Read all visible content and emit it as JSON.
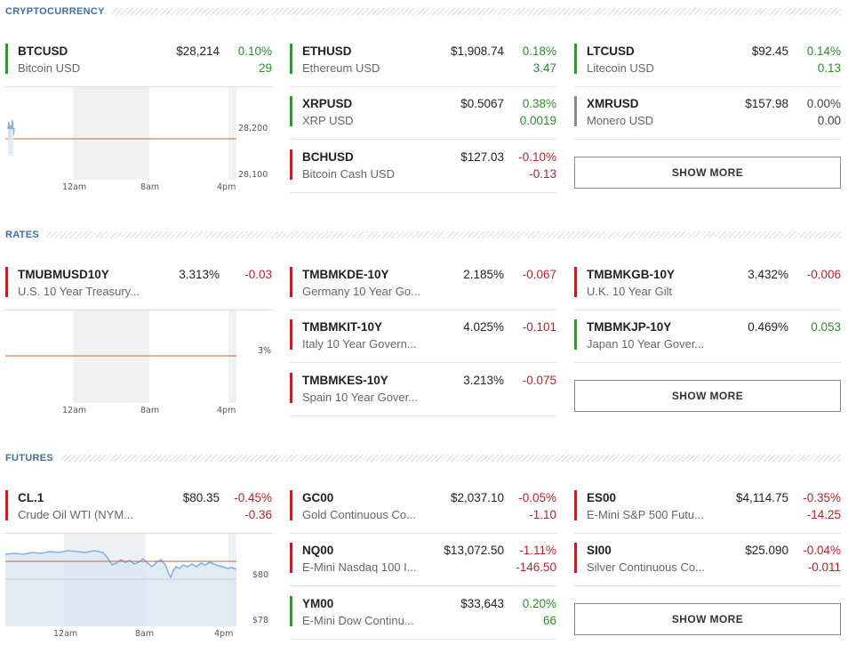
{
  "sections": {
    "crypto": {
      "title": "CRYPTOCURRENCY",
      "show_more": "SHOW MORE",
      "chart": {
        "y_top_label": "28,200",
        "y_bottom_label": "28,100",
        "x_labels": [
          "12am",
          "8am",
          "4pm"
        ]
      },
      "quotes": [
        {
          "symbol": "BTCUSD",
          "name": "Bitcoin USD",
          "price": "$28,214",
          "pct": "0.10%",
          "change": "29",
          "dir": "up"
        },
        {
          "symbol": "ETHUSD",
          "name": "Ethereum USD",
          "price": "$1,908.74",
          "pct": "0.18%",
          "change": "3.47",
          "dir": "up"
        },
        {
          "symbol": "LTCUSD",
          "name": "Litecoin USD",
          "price": "$92.45",
          "pct": "0.14%",
          "change": "0.13",
          "dir": "up"
        },
        {
          "symbol": "XRPUSD",
          "name": "XRP USD",
          "price": "$0.5067",
          "pct": "0.38%",
          "change": "0.0019",
          "dir": "up"
        },
        {
          "symbol": "XMRUSD",
          "name": "Monero USD",
          "price": "$157.98",
          "pct": "0.00%",
          "change": "0.00",
          "dir": "flat"
        },
        {
          "symbol": "BCHUSD",
          "name": "Bitcoin Cash USD",
          "price": "$127.03",
          "pct": "-0.10%",
          "change": "-0.13",
          "dir": "down"
        }
      ]
    },
    "rates": {
      "title": "RATES",
      "show_more": "SHOW MORE",
      "chart": {
        "y_label": "3%",
        "x_labels": [
          "12am",
          "8am",
          "4pm"
        ]
      },
      "quotes": [
        {
          "symbol": "TMUBMUSD10Y",
          "name": "U.S. 10 Year Treasury...",
          "price": "3.313%",
          "pct": "-0.03",
          "dir": "down"
        },
        {
          "symbol": "TMBMKDE-10Y",
          "name": "Germany 10 Year Go...",
          "price": "2.185%",
          "pct": "-0.067",
          "dir": "down"
        },
        {
          "symbol": "TMBMKGB-10Y",
          "name": "U.K. 10 Year Gilt",
          "price": "3.432%",
          "pct": "-0.006",
          "dir": "down"
        },
        {
          "symbol": "TMBMKIT-10Y",
          "name": "Italy 10 Year Govern...",
          "price": "4.025%",
          "pct": "-0.101",
          "dir": "down"
        },
        {
          "symbol": "TMBMKJP-10Y",
          "name": "Japan 10 Year Gover...",
          "price": "0.469%",
          "pct": "0.053",
          "dir": "up"
        },
        {
          "symbol": "TMBMKES-10Y",
          "name": "Spain 10 Year Gover...",
          "price": "3.213%",
          "pct": "-0.075",
          "dir": "down"
        }
      ]
    },
    "futures": {
      "title": "FUTURES",
      "show_more": "SHOW MORE",
      "chart": {
        "y_top_label": "$80",
        "y_bottom_label": "$78",
        "x_labels": [
          "12am",
          "8am",
          "4pm"
        ]
      },
      "quotes": [
        {
          "symbol": "CL.1",
          "name": "Crude Oil WTI (NYM...",
          "price": "$80.35",
          "pct": "-0.45%",
          "change": "-0.36",
          "dir": "down"
        },
        {
          "symbol": "GC00",
          "name": "Gold Continuous Co...",
          "price": "$2,037.10",
          "pct": "-0.05%",
          "change": "-1.10",
          "dir": "down"
        },
        {
          "symbol": "ES00",
          "name": "E-Mini S&P 500 Futu...",
          "price": "$4,114.75",
          "pct": "-0.35%",
          "change": "-14.25",
          "dir": "down"
        },
        {
          "symbol": "NQ00",
          "name": "E-Mini Nasdaq 100 I...",
          "price": "$13,072.50",
          "pct": "-1.11%",
          "change": "-146.50",
          "dir": "down"
        },
        {
          "symbol": "SI00",
          "name": "Silver Continuous Co...",
          "price": "$25.090",
          "pct": "-0.04%",
          "change": "-0.011",
          "dir": "down"
        },
        {
          "symbol": "YM00",
          "name": "E-Mini Dow Continu...",
          "price": "$33,643",
          "pct": "0.20%",
          "change": "66",
          "dir": "up"
        }
      ]
    }
  },
  "colors": {
    "up": "#2f8a2f",
    "down": "#b5242b",
    "flat": "#8c8c8c",
    "accent": "#3c6ea8",
    "chart_line": "#7fb0e0",
    "baseline": "#c8662f"
  }
}
